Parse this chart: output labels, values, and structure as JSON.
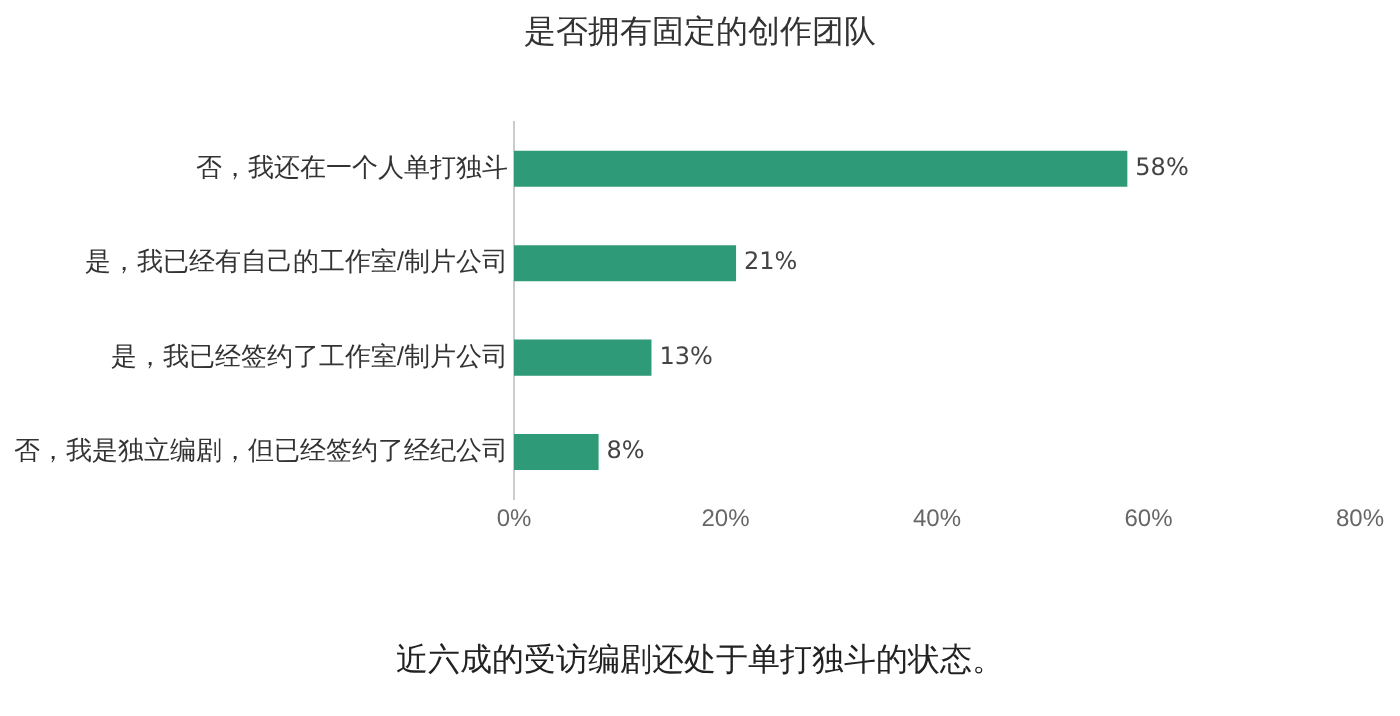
{
  "chart_data": {
    "type": "bar",
    "orientation": "horizontal",
    "title": "是否拥有固定的创作团队",
    "categories": [
      "否，我还在一个人单打独斗",
      "是，我已经有自己的工作室/制片公司",
      "是，我已经签约了工作室/制片公司",
      "否，我是独立编剧，但已经签约了经纪公司"
    ],
    "values": [
      58,
      21,
      13,
      8
    ],
    "value_labels": [
      "58%",
      "21%",
      "13%",
      "8%"
    ],
    "color": "#2e9a78",
    "xlim": [
      0,
      80
    ],
    "xticks": [
      {
        "value": 0,
        "label": "0%"
      },
      {
        "value": 20,
        "label": "20%"
      },
      {
        "value": 40,
        "label": "40%"
      },
      {
        "value": 60,
        "label": "60%"
      },
      {
        "value": 80,
        "label": "80%"
      }
    ],
    "grid": false,
    "legend": false,
    "annotations": [
      "近六成的受访编剧还处于单打独斗的状态。"
    ]
  }
}
